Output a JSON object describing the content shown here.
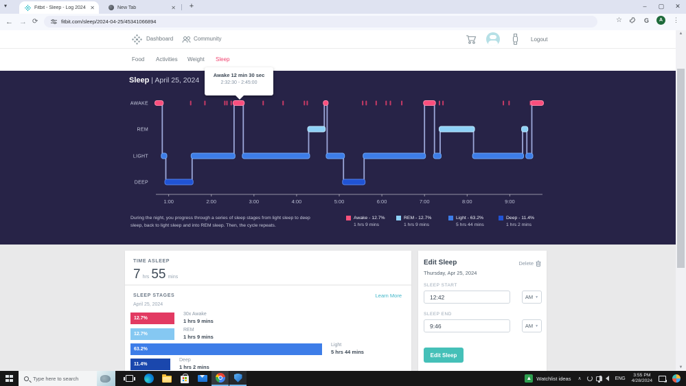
{
  "browser": {
    "tabs": [
      {
        "title": "Fitbit - Sleep - Log 2024-04-25"
      },
      {
        "title": "New Tab"
      }
    ],
    "url": "fitbit.com/sleep/2024-04-25/45341066894",
    "profile_initial": "A",
    "extension_badge": "G"
  },
  "site": {
    "nav": {
      "dashboard": "Dashboard",
      "community": "Community",
      "logout": "Logout"
    },
    "subnav": [
      "Food",
      "Activities",
      "Weight",
      "Sleep"
    ]
  },
  "hero": {
    "title": "Sleep",
    "separator": "|",
    "date": "April 25, 2024",
    "tooltip_title": "Awake 12 min 30 sec",
    "tooltip_range": "2:32:30 - 2:45:00",
    "desc_line1": "During the night, you progress through a series of sleep stages from light sleep to deep",
    "desc_line2": "sleep, back to light sleep and into REM sleep. Then, the cycle repeats.",
    "legend": [
      {
        "label": "Awake - 12.7%",
        "duration": "1 hrs 9 mins",
        "color": "#f8517b"
      },
      {
        "label": "REM - 12.7%",
        "duration": "1 hrs 9 mins",
        "color": "#8ed1f7"
      },
      {
        "label": "Light - 63.2%",
        "duration": "5 hrs 44 mins",
        "color": "#3d7de8"
      },
      {
        "label": "Deep - 11.4%",
        "duration": "1 hrs 2 mins",
        "color": "#2053d4"
      }
    ]
  },
  "chart_data": {
    "type": "hypnogram-step",
    "title": "Sleep | April 25, 2024",
    "levels": [
      "AWAKE",
      "REM",
      "LIGHT",
      "DEEP"
    ],
    "x_ticks": [
      "1:00",
      "2:00",
      "3:00",
      "4:00",
      "5:00",
      "6:00",
      "7:00",
      "8:00",
      "9:00"
    ],
    "sleep_start": "12:42 AM",
    "sleep_end": "9:46 AM",
    "total_minutes": 544,
    "first_tick_offset_minutes": 18,
    "tick_interval_minutes": 60,
    "segments": [
      {
        "level": "AWAKE",
        "start": 0,
        "end": 9
      },
      {
        "level": "LIGHT",
        "start": 9,
        "end": 14
      },
      {
        "level": "DEEP",
        "start": 14,
        "end": 51
      },
      {
        "level": "LIGHT",
        "start": 51,
        "end": 110
      },
      {
        "level": "AWAKE",
        "start": 110,
        "end": 123
      },
      {
        "level": "LIGHT",
        "start": 123,
        "end": 215
      },
      {
        "level": "REM",
        "start": 215,
        "end": 237
      },
      {
        "level": "AWAKE",
        "start": 237,
        "end": 241
      },
      {
        "level": "LIGHT",
        "start": 241,
        "end": 264
      },
      {
        "level": "DEEP",
        "start": 264,
        "end": 293
      },
      {
        "level": "LIGHT",
        "start": 293,
        "end": 378
      },
      {
        "level": "AWAKE",
        "start": 378,
        "end": 392
      },
      {
        "level": "LIGHT",
        "start": 392,
        "end": 400
      },
      {
        "level": "REM",
        "start": 400,
        "end": 447
      },
      {
        "level": "LIGHT",
        "start": 447,
        "end": 516
      },
      {
        "level": "REM",
        "start": 516,
        "end": 522
      },
      {
        "level": "LIGHT",
        "start": 522,
        "end": 529
      },
      {
        "level": "AWAKE",
        "start": 529,
        "end": 544
      }
    ],
    "awake_tick_minutes": [
      49,
      69,
      97,
      100,
      106,
      151,
      179,
      209,
      213,
      291,
      296,
      310,
      324,
      330,
      346,
      399,
      404,
      489,
      497,
      527
    ],
    "colors": {
      "AWAKE": "#fb4e7d",
      "REM": "#8ed1f7",
      "LIGHT": "#3d7de8",
      "DEEP": "#2053d4"
    }
  },
  "summary": {
    "label": "TIME ASLEEP",
    "hours": "7",
    "hours_unit": "hrs",
    "minutes": "55",
    "minutes_unit": "mins"
  },
  "stages": {
    "label": "SLEEP STAGES",
    "date": "April 25, 2024",
    "learn_more": "Learn More",
    "items": [
      {
        "pct": 12.7,
        "pct_label": "12.7%",
        "name": "30x Awake",
        "duration": "1 hrs 9 mins",
        "color": "#e23a62"
      },
      {
        "pct": 12.7,
        "pct_label": "12.7%",
        "name": "REM",
        "duration": "1 hrs 9 mins",
        "color": "#85c8f2"
      },
      {
        "pct": 63.2,
        "pct_label": "63.2%",
        "name": "Light",
        "duration": "5 hrs 44 mins",
        "color": "#3d7de8"
      },
      {
        "pct": 11.4,
        "pct_label": "11.4%",
        "name": "Deep",
        "duration": "1 hrs 2 mins",
        "color": "#1a47ad"
      }
    ]
  },
  "edit_sleep": {
    "title": "Edit Sleep",
    "delete": "Delete",
    "date": "Thursday, Apr 25, 2024",
    "start_label": "SLEEP START",
    "start_value": "12:42",
    "start_period": "AM",
    "end_label": "SLEEP END",
    "end_value": "9:46",
    "end_period": "AM",
    "submit": "Edit Sleep"
  },
  "taskbar": {
    "search_placeholder": "Type here to search",
    "watchlist_label": "Watchlist ideas",
    "language": "ENG",
    "time": "3:55 PM",
    "date": "4/28/2024"
  }
}
